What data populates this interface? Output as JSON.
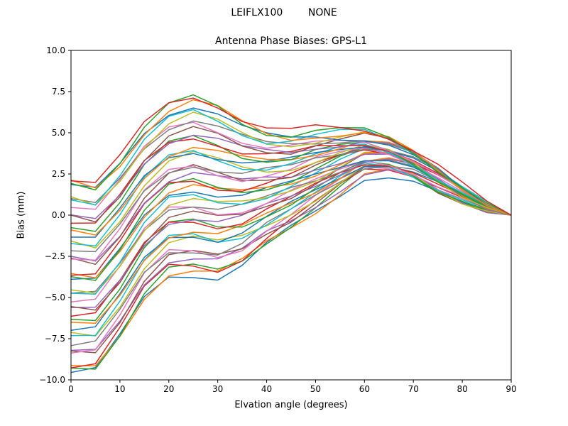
{
  "chart_data": {
    "type": "line",
    "suptitle": "LEIFLX100        NONE",
    "title": "Antenna Phase Biases: GPS-L1",
    "xlabel": "Elvation angle (degrees)",
    "ylabel": "Bias (mm)",
    "xlim": [
      0,
      90
    ],
    "ylim": [
      -10,
      10
    ],
    "grid": false,
    "legend": "none",
    "xticks": [
      0,
      10,
      20,
      30,
      40,
      50,
      60,
      70,
      80,
      90
    ],
    "xtick_labels": [
      "0",
      "10",
      "20",
      "30",
      "40",
      "50",
      "60",
      "70",
      "80",
      "90"
    ],
    "yticks": [
      -10,
      -7.5,
      -5,
      -2.5,
      0,
      2.5,
      5,
      7.5,
      10
    ],
    "ytick_labels": [
      "−10.0",
      "−7.5",
      "−5.0",
      "−2.5",
      "0.0",
      "2.5",
      "5.0",
      "7.5",
      "10.0"
    ],
    "x": [
      0,
      5,
      10,
      15,
      20,
      25,
      30,
      35,
      40,
      45,
      50,
      55,
      60,
      65,
      70,
      75,
      80,
      85,
      90
    ],
    "band_upper_envelope": [
      2.0,
      1.7,
      3.2,
      5.2,
      6.5,
      7.0,
      6.5,
      5.6,
      5.0,
      4.8,
      5.0,
      5.0,
      5.0,
      4.6,
      3.8,
      2.8,
      1.7,
      0.7,
      0.0
    ],
    "band_lower_envelope": [
      -9.3,
      -9.2,
      -7.2,
      -4.8,
      -3.4,
      -3.3,
      -3.5,
      -2.8,
      -1.6,
      -0.6,
      0.4,
      1.5,
      2.6,
      2.7,
      2.3,
      1.5,
      0.8,
      0.3,
      0.0
    ],
    "series": [
      {
        "values": [
          -9.3,
          -9.2,
          -7.2,
          -4.8,
          -3.4,
          -3.3,
          -3.5,
          -2.8,
          -1.6,
          -0.6,
          0.4,
          1.5,
          2.6,
          2.7,
          2.3,
          1.5,
          0.8,
          0.3,
          0.0
        ]
      },
      {
        "values": [
          -8.2,
          -8.1,
          -6.2,
          -3.8,
          -2.4,
          -2.3,
          -2.5,
          -2.0,
          -0.9,
          -0.1,
          0.9,
          1.9,
          2.8,
          2.9,
          2.5,
          1.6,
          0.9,
          0.3,
          0.0
        ]
      },
      {
        "values": [
          -7.0,
          -7.0,
          -5.1,
          -2.8,
          -1.4,
          -1.2,
          -1.5,
          -1.1,
          -0.3,
          0.5,
          1.3,
          2.2,
          3.1,
          3.1,
          2.6,
          1.8,
          1.0,
          0.4,
          0.0
        ]
      },
      {
        "values": [
          -5.9,
          -5.9,
          -4.1,
          -1.8,
          -0.4,
          -0.2,
          -0.5,
          -0.3,
          0.4,
          1.0,
          1.8,
          2.6,
          3.3,
          3.3,
          2.8,
          1.9,
          1.1,
          0.4,
          0.0
        ]
      },
      {
        "values": [
          -4.8,
          -4.8,
          -3.0,
          -0.8,
          0.6,
          0.8,
          0.5,
          0.6,
          1.0,
          1.6,
          2.2,
          2.9,
          3.6,
          3.5,
          2.9,
          2.0,
          1.2,
          0.5,
          0.0
        ]
      },
      {
        "values": [
          -3.7,
          -3.8,
          -2.0,
          0.2,
          1.6,
          1.9,
          1.5,
          1.4,
          1.7,
          2.1,
          2.7,
          3.3,
          3.8,
          3.7,
          3.1,
          2.2,
          1.3,
          0.5,
          0.0
        ]
      },
      {
        "values": [
          -2.5,
          -2.7,
          -1.0,
          1.2,
          2.5,
          2.9,
          2.5,
          2.2,
          2.4,
          2.6,
          3.2,
          3.6,
          4.0,
          3.8,
          3.2,
          2.3,
          1.3,
          0.5,
          0.0
        ]
      },
      {
        "values": [
          -1.4,
          -1.6,
          0.1,
          2.2,
          3.5,
          3.9,
          3.5,
          3.1,
          3.0,
          3.2,
          3.6,
          4.0,
          4.3,
          4.0,
          3.4,
          2.4,
          1.4,
          0.6,
          0.0
        ]
      },
      {
        "values": [
          -0.3,
          -0.5,
          1.1,
          3.2,
          4.5,
          4.9,
          4.5,
          3.9,
          3.7,
          3.7,
          4.1,
          4.3,
          4.5,
          4.2,
          3.5,
          2.5,
          1.5,
          0.6,
          0.0
        ]
      },
      {
        "values": [
          0.9,
          0.6,
          2.2,
          4.2,
          5.5,
          6.0,
          5.5,
          4.8,
          4.3,
          4.3,
          4.5,
          4.7,
          4.8,
          4.4,
          3.7,
          2.7,
          1.6,
          0.7,
          0.0
        ]
      },
      {
        "values": [
          2.0,
          1.7,
          3.2,
          5.2,
          6.5,
          7.0,
          6.5,
          5.6,
          5.0,
          4.8,
          5.0,
          5.0,
          5.0,
          4.6,
          3.8,
          2.8,
          1.7,
          0.7,
          0.0
        ]
      }
    ],
    "render": {
      "copies_offsets": [
        -0.25,
        -0.08,
        0.08,
        0.25
      ],
      "wobble_amplitude": 0.25,
      "line_width": 1.5,
      "color_cycle": [
        "#1f77b4",
        "#ff7f0e",
        "#2ca02c",
        "#d62728",
        "#9467bd",
        "#8c564b",
        "#e377c2",
        "#7f7f7f",
        "#bcbd22",
        "#17becf"
      ],
      "axis_color": "#000000",
      "background_color": "#ffffff"
    }
  }
}
